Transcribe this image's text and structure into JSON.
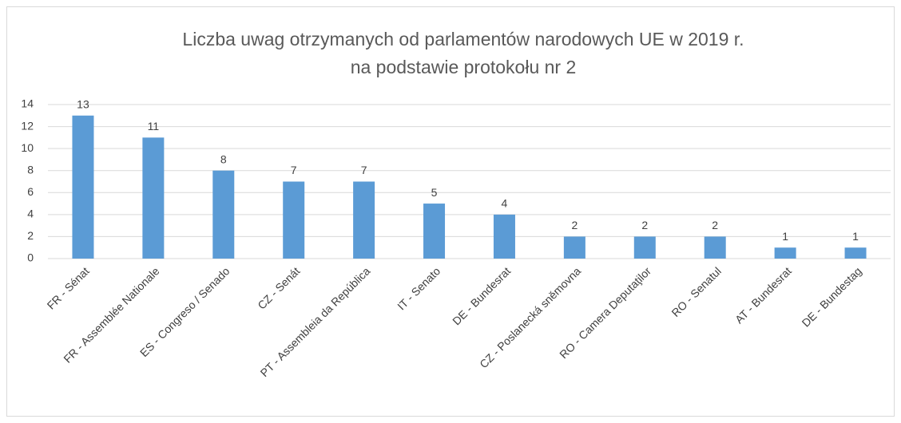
{
  "chart_data": {
    "type": "bar",
    "title": [
      "Liczba uwag otrzymanych od parlamentów narodowych UE w 2019 r.",
      "na podstawie protokołu nr 2"
    ],
    "categories": [
      "FR - Sénat",
      "FR - Assemblée Nationale",
      "ES - Congreso / Senado",
      "CZ - Senát",
      "PT - Assembleia da República",
      "IT - Senato",
      "DE - Bundesrat",
      "CZ - Poslanecká sněmovna",
      "RO - Camera Deputaţilor",
      "RO - Senatul",
      "AT - Bundesrat",
      "DE - Bundestag"
    ],
    "values": [
      13,
      11,
      8,
      7,
      7,
      5,
      4,
      2,
      2,
      2,
      1,
      1
    ],
    "color": "#5b9bd5",
    "ylim": [
      0,
      14
    ],
    "yticks": [
      0,
      2,
      4,
      6,
      8,
      10,
      12,
      14
    ],
    "grid": true
  }
}
